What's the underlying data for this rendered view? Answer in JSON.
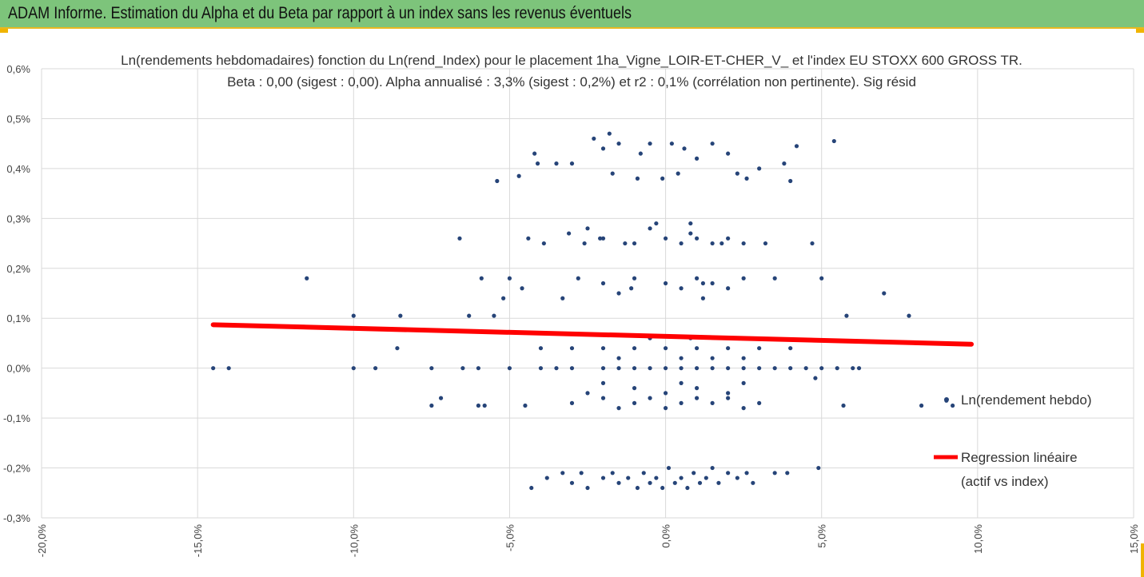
{
  "header": {
    "title": "ADAM Informe. Estimation du Alpha et du Beta par rapport à un index sans les revenus éventuels"
  },
  "colors": {
    "header_bg": "#7dc47b",
    "accent": "#f0b400",
    "points": "#264478",
    "regression": "#ff0000",
    "grid": "#d9d9d9"
  },
  "chart_data": {
    "type": "scatter",
    "title": [
      "Ln(rendements hebdomadaires) fonction du Ln(rend_Index)  pour le placement 1ha_Vigne_LOIR-ET-CHER_V_ et l'index EU STOXX 600 GROSS TR.",
      "Beta : 0,00 (sigest : 0,00). Alpha annualisé : 3,3% (sigest : 0,2%) et r2 : 0,1% (corrélation non pertinente). Sig résid"
    ],
    "xlim": [
      -0.2,
      0.15
    ],
    "ylim": [
      -0.003,
      0.006
    ],
    "x_ticks": [
      -0.2,
      -0.15,
      -0.1,
      -0.05,
      0.0,
      0.05,
      0.1,
      0.15
    ],
    "x_tick_labels": [
      "-20,0%",
      "-15,0%",
      "-10,0%",
      "-5,0%",
      "0,0%",
      "5,0%",
      "10,0%",
      "15,0%"
    ],
    "y_ticks": [
      -0.003,
      -0.002,
      -0.001,
      0.0,
      0.001,
      0.002,
      0.003,
      0.004,
      0.005,
      0.006
    ],
    "y_tick_labels": [
      "-0,3%",
      "-0,2%",
      "-0,1%",
      "0,0%",
      "0,1%",
      "0,2%",
      "0,3%",
      "0,4%",
      "0,5%",
      "0,6%"
    ],
    "grid": true,
    "legend_position": "right",
    "series": [
      {
        "name": "Ln(rendement hebdo)",
        "type": "scatter",
        "points": [
          [
            -0.145,
            0.0
          ],
          [
            -0.14,
            0.0
          ],
          [
            -0.1,
            0.0
          ],
          [
            -0.093,
            0.0
          ],
          [
            -0.075,
            0.0
          ],
          [
            -0.065,
            0.0
          ],
          [
            -0.06,
            0.0
          ],
          [
            -0.05,
            0.0
          ],
          [
            -0.04,
            0.0
          ],
          [
            -0.035,
            0.0
          ],
          [
            -0.03,
            0.0
          ],
          [
            -0.02,
            0.0
          ],
          [
            -0.015,
            0.0
          ],
          [
            -0.01,
            0.0
          ],
          [
            -0.005,
            0.0
          ],
          [
            0.0,
            0.0
          ],
          [
            0.005,
            0.0
          ],
          [
            0.01,
            0.0
          ],
          [
            0.015,
            0.0
          ],
          [
            0.02,
            0.0
          ],
          [
            0.025,
            0.0
          ],
          [
            0.03,
            0.0
          ],
          [
            0.035,
            0.0
          ],
          [
            0.04,
            0.0
          ],
          [
            0.045,
            0.0
          ],
          [
            0.05,
            0.0
          ],
          [
            0.055,
            0.0
          ],
          [
            0.06,
            0.0
          ],
          [
            0.062,
            0.0
          ],
          [
            -0.115,
            0.0018
          ],
          [
            -0.1,
            0.00105
          ],
          [
            -0.085,
            0.00105
          ],
          [
            -0.086,
            0.0004
          ],
          [
            -0.075,
            -0.00075
          ],
          [
            -0.072,
            -0.0006
          ],
          [
            -0.066,
            0.0026
          ],
          [
            -0.063,
            0.00105
          ],
          [
            -0.06,
            -0.00075
          ],
          [
            -0.059,
            0.0018
          ],
          [
            -0.055,
            0.00105
          ],
          [
            -0.054,
            0.00375
          ],
          [
            -0.052,
            0.0014
          ],
          [
            -0.05,
            0.0018
          ],
          [
            -0.047,
            0.00385
          ],
          [
            -0.046,
            0.0016
          ],
          [
            -0.044,
            0.0026
          ],
          [
            -0.042,
            0.0043
          ],
          [
            -0.043,
            -0.0024
          ],
          [
            -0.041,
            0.0041
          ],
          [
            -0.039,
            0.0025
          ],
          [
            -0.035,
            0.0041
          ],
          [
            -0.033,
            0.0014
          ],
          [
            -0.031,
            0.0027
          ],
          [
            -0.03,
            0.0041
          ],
          [
            -0.028,
            0.0018
          ],
          [
            -0.026,
            0.0025
          ],
          [
            -0.025,
            0.0028
          ],
          [
            -0.023,
            0.0046
          ],
          [
            -0.021,
            0.0026
          ],
          [
            -0.02,
            0.0044
          ],
          [
            -0.018,
            0.0047
          ],
          [
            -0.017,
            0.0039
          ],
          [
            -0.015,
            0.0045
          ],
          [
            -0.013,
            0.0025
          ],
          [
            -0.011,
            0.0016
          ],
          [
            -0.009,
            0.0038
          ],
          [
            -0.008,
            0.0043
          ],
          [
            -0.005,
            0.0045
          ],
          [
            -0.003,
            0.0029
          ],
          [
            -0.001,
            0.0038
          ],
          [
            0.002,
            0.0045
          ],
          [
            0.004,
            0.0039
          ],
          [
            0.006,
            0.0044
          ],
          [
            0.008,
            0.0027
          ],
          [
            0.01,
            0.0042
          ],
          [
            0.012,
            0.0017
          ],
          [
            0.015,
            0.0045
          ],
          [
            0.018,
            0.0025
          ],
          [
            0.02,
            0.0043
          ],
          [
            0.023,
            0.0039
          ],
          [
            0.026,
            0.0038
          ],
          [
            0.03,
            0.004
          ],
          [
            0.032,
            0.0025
          ],
          [
            0.035,
            0.0018
          ],
          [
            0.038,
            0.0041
          ],
          [
            0.04,
            0.00375
          ],
          [
            0.042,
            0.00445
          ],
          [
            0.047,
            0.0025
          ],
          [
            0.05,
            0.0018
          ],
          [
            0.054,
            0.00455
          ],
          [
            0.058,
            0.00105
          ],
          [
            0.07,
            0.0015
          ],
          [
            0.078,
            0.00105
          ],
          [
            0.082,
            -0.00075
          ],
          [
            0.09,
            -0.00065
          ],
          [
            0.092,
            -0.00075
          ],
          [
            0.057,
            -0.00075
          ],
          [
            0.048,
            -0.0002
          ],
          [
            -0.058,
            -0.00075
          ],
          [
            -0.045,
            -0.00075
          ],
          [
            -0.038,
            -0.0022
          ],
          [
            -0.033,
            -0.0021
          ],
          [
            -0.03,
            -0.0023
          ],
          [
            -0.027,
            -0.0021
          ],
          [
            -0.025,
            -0.0024
          ],
          [
            -0.02,
            -0.0022
          ],
          [
            -0.017,
            -0.0021
          ],
          [
            -0.015,
            -0.0023
          ],
          [
            -0.012,
            -0.0022
          ],
          [
            -0.009,
            -0.0024
          ],
          [
            -0.007,
            -0.0021
          ],
          [
            -0.005,
            -0.0023
          ],
          [
            -0.003,
            -0.0022
          ],
          [
            -0.001,
            -0.0024
          ],
          [
            0.001,
            -0.002
          ],
          [
            0.003,
            -0.0023
          ],
          [
            0.005,
            -0.0022
          ],
          [
            0.007,
            -0.0024
          ],
          [
            0.009,
            -0.0021
          ],
          [
            0.011,
            -0.0023
          ],
          [
            0.013,
            -0.0022
          ],
          [
            0.015,
            -0.002
          ],
          [
            0.017,
            -0.0023
          ],
          [
            0.02,
            -0.0021
          ],
          [
            0.023,
            -0.0022
          ],
          [
            0.026,
            -0.0021
          ],
          [
            0.028,
            -0.0023
          ],
          [
            0.035,
            -0.0021
          ],
          [
            0.039,
            -0.0021
          ],
          [
            0.049,
            -0.002
          ],
          [
            -0.03,
            -0.0007
          ],
          [
            -0.02,
            -0.0006
          ],
          [
            -0.015,
            -0.0008
          ],
          [
            -0.01,
            -0.0007
          ],
          [
            -0.005,
            -0.0006
          ],
          [
            0.0,
            -0.0008
          ],
          [
            0.005,
            -0.0007
          ],
          [
            0.01,
            -0.0006
          ],
          [
            0.015,
            -0.0007
          ],
          [
            0.02,
            -0.0006
          ],
          [
            0.025,
            -0.0008
          ],
          [
            0.03,
            -0.0007
          ],
          [
            -0.025,
            -0.0005
          ],
          [
            -0.01,
            -0.0004
          ],
          [
            0.0,
            -0.0005
          ],
          [
            0.01,
            -0.0004
          ],
          [
            0.02,
            -0.0005
          ],
          [
            -0.02,
            -0.0003
          ],
          [
            0.005,
            -0.0003
          ],
          [
            0.025,
            -0.0003
          ],
          [
            -0.04,
            0.0004
          ],
          [
            -0.03,
            0.0004
          ],
          [
            -0.02,
            0.0004
          ],
          [
            -0.01,
            0.0004
          ],
          [
            0.0,
            0.0004
          ],
          [
            0.01,
            0.0004
          ],
          [
            0.02,
            0.0004
          ],
          [
            0.03,
            0.0004
          ],
          [
            0.04,
            0.0004
          ],
          [
            -0.015,
            0.0002
          ],
          [
            0.005,
            0.0002
          ],
          [
            0.015,
            0.0002
          ],
          [
            0.025,
            0.0002
          ],
          [
            -0.005,
            0.0006
          ],
          [
            0.008,
            0.0006
          ],
          [
            -0.02,
            0.0017
          ],
          [
            -0.01,
            0.0018
          ],
          [
            0.0,
            0.0017
          ],
          [
            0.005,
            0.0016
          ],
          [
            0.01,
            0.0018
          ],
          [
            0.015,
            0.0017
          ],
          [
            0.02,
            0.0016
          ],
          [
            0.025,
            0.0018
          ],
          [
            -0.015,
            0.0015
          ],
          [
            0.012,
            0.0014
          ],
          [
            -0.02,
            0.0026
          ],
          [
            -0.01,
            0.0025
          ],
          [
            0.0,
            0.0026
          ],
          [
            0.005,
            0.0025
          ],
          [
            0.01,
            0.0026
          ],
          [
            0.015,
            0.0025
          ],
          [
            0.02,
            0.0026
          ],
          [
            0.025,
            0.0025
          ],
          [
            0.008,
            0.0029
          ],
          [
            -0.005,
            0.0028
          ]
        ]
      },
      {
        "name": "Regression linéaire\n(actif vs index)",
        "type": "line",
        "points": [
          [
            -0.145,
            0.00087
          ],
          [
            0.098,
            0.00048
          ]
        ]
      }
    ]
  }
}
